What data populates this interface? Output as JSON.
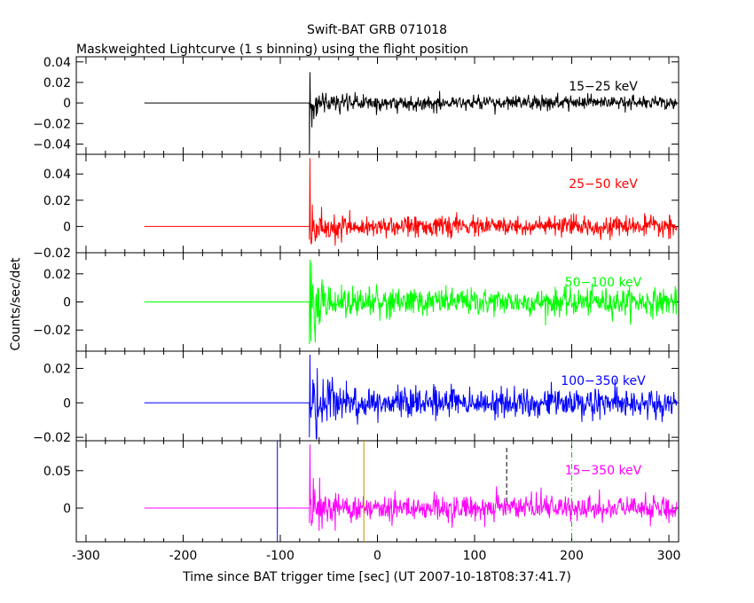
{
  "chart_data": {
    "type": "line",
    "title": "Swift-BAT GRB 071018",
    "subtitle": "Maskweighted Lightcurve (1 s binning) using the flight position",
    "xlabel": "Time since BAT trigger time [sec] (UT 2007-10-18T08:37:41.7)",
    "ylabel": "Counts/sec/det",
    "xlim": [
      -310,
      310
    ],
    "x_ticks": [
      -300,
      -200,
      -100,
      0,
      100,
      200,
      300
    ],
    "x_range_data": [
      -240,
      308
    ],
    "trigger_time": -70,
    "panels": [
      {
        "label": "15−25 keV",
        "color": "#000000",
        "ylim": [
          -0.05,
          0.045
        ],
        "y_ticks": [
          0.04,
          0.02,
          0,
          -0.02,
          -0.04
        ],
        "y_tick_labels": [
          "0.04",
          "0.02",
          "0",
          "−0.02",
          "−0.04"
        ],
        "noise_sigma": 0.006,
        "spike": 0.03,
        "spike_neg": -0.05
      },
      {
        "label": "25−50 keV",
        "color": "#ff0000",
        "ylim": [
          -0.02,
          0.055
        ],
        "y_ticks": [
          0.04,
          0.02,
          0,
          -0.02
        ],
        "y_tick_labels": [
          "0.04",
          "0.02",
          "0",
          "−0.02"
        ],
        "noise_sigma": 0.006,
        "spike": 0.052,
        "spike_neg": -0.01
      },
      {
        "label": "50−100 keV",
        "color": "#00ff00",
        "ylim": [
          -0.035,
          0.035
        ],
        "y_ticks": [
          0.02,
          0,
          -0.02
        ],
        "y_tick_labels": [
          "0.02",
          "0",
          "−0.02"
        ],
        "noise_sigma": 0.008,
        "spike": 0.03,
        "spike_neg": -0.03
      },
      {
        "label": "100−350 keV",
        "color": "#0000ff",
        "ylim": [
          -0.022,
          0.03
        ],
        "y_ticks": [
          0.02,
          0,
          -0.02
        ],
        "y_tick_labels": [
          "0.02",
          "0",
          "−0.02"
        ],
        "noise_sigma": 0.007,
        "spike": 0.028,
        "spike_neg": -0.02
      },
      {
        "label": "15−350 keV",
        "color": "#ff00ff",
        "ylim": [
          -0.045,
          0.09
        ],
        "y_ticks": [
          0.05,
          0
        ],
        "y_tick_labels": [
          "0.05",
          "0"
        ],
        "noise_sigma": 0.013,
        "spike": 0.085,
        "spike_neg": -0.02
      }
    ],
    "markers": [
      {
        "x": -103,
        "color": "#0000ff",
        "style": "solid"
      },
      {
        "x": -14,
        "color": "#cc8800",
        "style": "solid"
      },
      {
        "x": 133,
        "color": "#000000",
        "style": "dashed",
        "top_only": true
      },
      {
        "x": 200,
        "color": "#00cc00",
        "style": "dashdot"
      }
    ]
  }
}
